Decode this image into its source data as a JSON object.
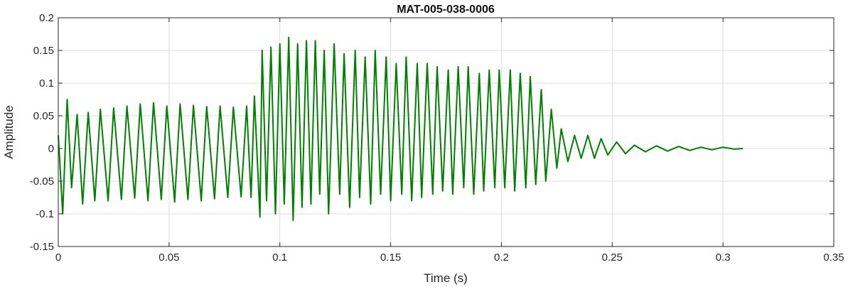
{
  "chart_data": {
    "type": "line",
    "title": "MAT-005-038-0006",
    "xlabel": "Time (s)",
    "ylabel": "Amplitude",
    "xlim": [
      0,
      0.35
    ],
    "ylim": [
      -0.15,
      0.2
    ],
    "xticks": [
      0,
      0.05,
      0.1,
      0.15,
      0.2,
      0.25,
      0.3,
      0.35
    ],
    "xtick_labels": [
      "0",
      "0.05",
      "0.1",
      "0.15",
      "0.2",
      "0.25",
      "0.3",
      "0.35"
    ],
    "yticks": [
      -0.15,
      -0.1,
      -0.05,
      0,
      0.05,
      0.1,
      0.15,
      0.2
    ],
    "ytick_labels": [
      "-0.15",
      "-0.1",
      "-0.05",
      "0",
      "0.05",
      "0.1",
      "0.15",
      "0.2"
    ],
    "grid": true,
    "line_color": "#008000",
    "series": [
      {
        "x": [
          0,
          0.002,
          0.004,
          0.006,
          0.0085,
          0.011,
          0.0135,
          0.0165,
          0.019,
          0.0225,
          0.025,
          0.0285,
          0.031,
          0.0345,
          0.037,
          0.0405,
          0.043,
          0.0465,
          0.049,
          0.0525,
          0.055,
          0.0585,
          0.061,
          0.0645,
          0.067,
          0.0705,
          0.073,
          0.0765,
          0.079,
          0.0825,
          0.085,
          0.087,
          0.0885,
          0.091,
          0.092,
          0.094,
          0.096,
          0.098,
          0.1,
          0.102,
          0.104,
          0.106,
          0.108,
          0.11,
          0.112,
          0.114,
          0.116,
          0.118,
          0.12,
          0.122,
          0.1245,
          0.127,
          0.129,
          0.1315,
          0.134,
          0.136,
          0.1385,
          0.141,
          0.143,
          0.1455,
          0.148,
          0.15,
          0.1525,
          0.155,
          0.157,
          0.1595,
          0.162,
          0.164,
          0.1665,
          0.169,
          0.171,
          0.1735,
          0.176,
          0.178,
          0.1805,
          0.183,
          0.185,
          0.1875,
          0.19,
          0.192,
          0.1945,
          0.197,
          0.199,
          0.2015,
          0.204,
          0.206,
          0.2085,
          0.211,
          0.213,
          0.2155,
          0.218,
          0.22,
          0.2225,
          0.225,
          0.227,
          0.23,
          0.233,
          0.236,
          0.239,
          0.242,
          0.245,
          0.248,
          0.252,
          0.256,
          0.26,
          0.265,
          0.27,
          0.275,
          0.28,
          0.285,
          0.29,
          0.295,
          0.3,
          0.305,
          0.309
        ],
        "y": [
          0.02,
          -0.1,
          0.075,
          -0.06,
          0.052,
          -0.085,
          0.055,
          -0.08,
          0.06,
          -0.08,
          0.062,
          -0.078,
          0.065,
          -0.076,
          0.068,
          -0.08,
          0.07,
          -0.078,
          0.065,
          -0.082,
          0.068,
          -0.078,
          0.066,
          -0.08,
          0.064,
          -0.077,
          0.065,
          -0.075,
          0.063,
          -0.074,
          0.065,
          -0.075,
          0.08,
          -0.105,
          0.15,
          -0.08,
          0.155,
          -0.1,
          0.16,
          -0.085,
          0.17,
          -0.11,
          0.16,
          -0.09,
          0.165,
          -0.085,
          0.165,
          -0.07,
          0.15,
          -0.1,
          0.16,
          -0.07,
          0.145,
          -0.09,
          0.15,
          -0.075,
          0.14,
          -0.085,
          0.15,
          -0.07,
          0.14,
          -0.08,
          0.13,
          -0.07,
          0.14,
          -0.08,
          0.13,
          -0.075,
          0.13,
          -0.07,
          0.125,
          -0.065,
          0.12,
          -0.07,
          0.125,
          -0.06,
          0.125,
          -0.07,
          0.115,
          -0.065,
          0.12,
          -0.06,
          0.12,
          -0.06,
          0.12,
          -0.065,
          0.115,
          -0.06,
          0.11,
          -0.055,
          0.09,
          -0.05,
          0.06,
          -0.03,
          0.03,
          -0.02,
          0.02,
          -0.015,
          0.02,
          -0.015,
          0.015,
          -0.01,
          0.01,
          -0.008,
          0.005,
          -0.005,
          0.004,
          -0.004,
          0.003,
          -0.003,
          0.002,
          -0.002,
          0.002,
          -0.001,
          0.0
        ]
      }
    ]
  }
}
